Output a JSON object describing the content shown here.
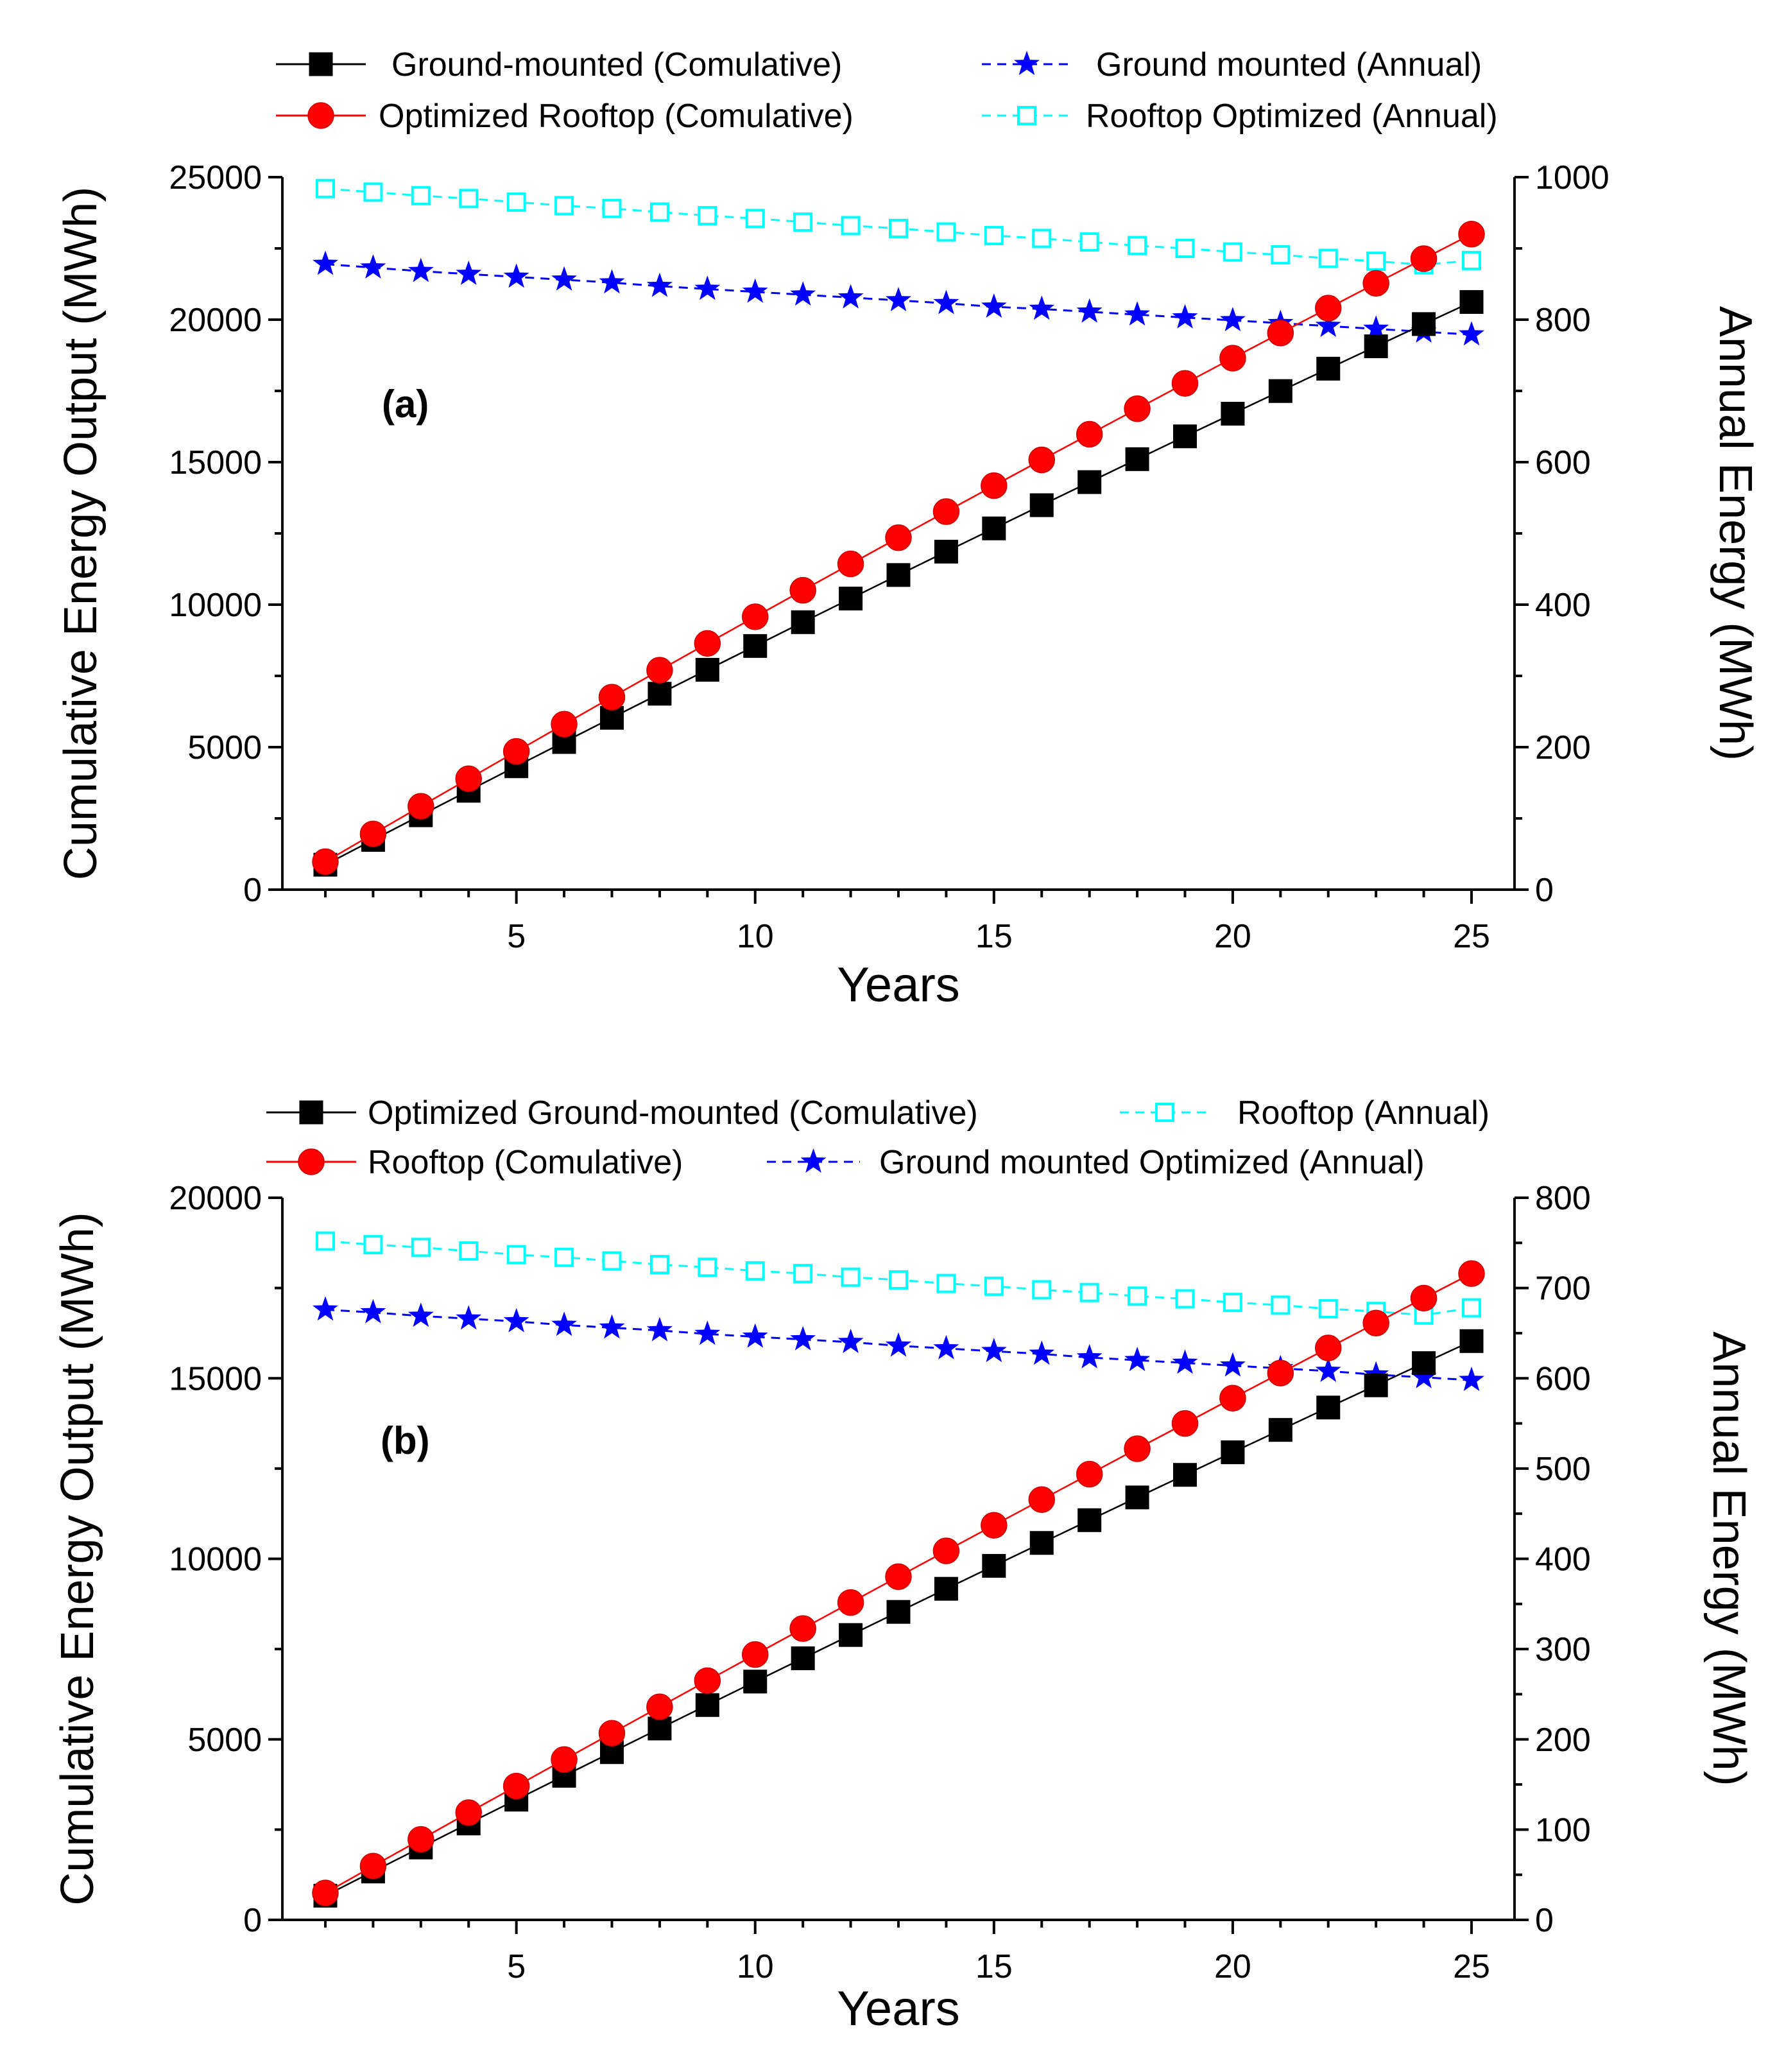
{
  "chart_data": [
    {
      "type": "line",
      "panel_label": "(a)",
      "xlabel": "Years",
      "ylabel_left": "Cumulative Energy Output (MWh)",
      "ylabel_right": "Annual Energy (MWh)",
      "xlim": [
        0.1,
        25.9
      ],
      "xticks": [
        "5",
        "10",
        "15",
        "20",
        "25"
      ],
      "ylim_left": [
        0,
        25000
      ],
      "yticks_left": [
        "0",
        "5000",
        "10000",
        "15000",
        "20000",
        "25000"
      ],
      "ylim_right": [
        0,
        1000
      ],
      "yticks_right": [
        "0",
        "200",
        "400",
        "600",
        "800",
        "1000"
      ],
      "legend_position": "top",
      "x": [
        1,
        2,
        3,
        4,
        5,
        6,
        7,
        8,
        9,
        10,
        11,
        12,
        13,
        14,
        15,
        16,
        17,
        18,
        19,
        20,
        21,
        22,
        23,
        24,
        25
      ],
      "series": [
        {
          "name": "Ground-mounted (Comulative)",
          "axis": "left",
          "marker": "square",
          "color": "#000000",
          "dashed": false,
          "values": [
            875,
            1745,
            2610,
            3470,
            4330,
            5180,
            6030,
            6875,
            7715,
            8550,
            9385,
            10215,
            11040,
            11860,
            12675,
            13490,
            14300,
            15105,
            15905,
            16700,
            17495,
            18280,
            19065,
            19845,
            20620
          ]
        },
        {
          "name": "Optimized Rooftop (Comulative)",
          "axis": "left",
          "marker": "circle",
          "color": "#ff0000",
          "dashed": false,
          "values": [
            980,
            1955,
            2925,
            3890,
            4850,
            5805,
            6755,
            7700,
            8640,
            9575,
            10505,
            11430,
            12350,
            13265,
            14175,
            15080,
            15980,
            16875,
            17765,
            18650,
            19530,
            20405,
            21275,
            22140,
            23000
          ]
        },
        {
          "name": "Ground mounted (Annual)",
          "axis": "right",
          "marker": "star",
          "color": "#0000ff",
          "dashed": true,
          "values": [
            878,
            873,
            868,
            864,
            860,
            856,
            852,
            847,
            843,
            839,
            835,
            831,
            827,
            823,
            818,
            815,
            811,
            807,
            803,
            799,
            795,
            791,
            787,
            783,
            779
          ]
        },
        {
          "name": "Rooftop Optimized (Annual)",
          "axis": "right",
          "marker": "open-square",
          "color": "#00ffff",
          "dashed": true,
          "values": [
            984,
            979,
            974,
            970,
            965,
            960,
            956,
            951,
            946,
            942,
            937,
            932,
            928,
            923,
            918,
            914,
            909,
            904,
            900,
            895,
            891,
            886,
            882,
            877,
            883
          ]
        }
      ]
    },
    {
      "type": "line",
      "panel_label": "(b)",
      "xlabel": "Years",
      "ylabel_left": "Cumulative Energy Output (MWh)",
      "ylabel_right": "Annual Energy (MWh)",
      "xlim": [
        0.1,
        25.9
      ],
      "xticks": [
        "5",
        "10",
        "15",
        "20",
        "25"
      ],
      "ylim_left": [
        0,
        20000
      ],
      "yticks_left": [
        "0",
        "5000",
        "10000",
        "15000",
        "20000"
      ],
      "ylim_right": [
        0,
        800
      ],
      "yticks_right": [
        "0",
        "100",
        "200",
        "300",
        "400",
        "500",
        "600",
        "700",
        "800"
      ],
      "legend_position": "top",
      "x": [
        1,
        2,
        3,
        4,
        5,
        6,
        7,
        8,
        9,
        10,
        11,
        12,
        13,
        14,
        15,
        16,
        17,
        18,
        19,
        20,
        21,
        22,
        23,
        24,
        25
      ],
      "series": [
        {
          "name": "Optimized Ground-mounted (Comulative)",
          "axis": "left",
          "marker": "square",
          "color": "#000000",
          "dashed": false,
          "values": [
            670,
            1340,
            2005,
            2670,
            3330,
            3990,
            4645,
            5300,
            5950,
            6600,
            7245,
            7890,
            8530,
            9170,
            9805,
            10440,
            11070,
            11700,
            12325,
            12950,
            13570,
            14190,
            14805,
            15420,
            16030
          ]
        },
        {
          "name": "Rooftop (Comulative)",
          "axis": "left",
          "marker": "circle",
          "color": "#ff0000",
          "dashed": false,
          "values": [
            745,
            1490,
            2230,
            2970,
            3705,
            4440,
            5170,
            5900,
            6625,
            7350,
            8070,
            8790,
            9505,
            10220,
            10930,
            11640,
            12345,
            13050,
            13750,
            14450,
            15145,
            15840,
            16530,
            17220,
            17900
          ]
        },
        {
          "name": "Rooftop (Annual)",
          "axis": "right",
          "marker": "open-square",
          "color": "#00ffff",
          "dashed": true,
          "values": [
            752,
            748,
            745,
            741,
            737,
            734,
            730,
            726,
            723,
            719,
            716,
            712,
            709,
            705,
            702,
            698,
            695,
            691,
            688,
            684,
            681,
            677,
            674,
            670,
            678
          ]
        },
        {
          "name": "Ground mounted Optimized (Annual)",
          "axis": "right",
          "marker": "star",
          "color": "#0000ff",
          "dashed": true,
          "values": [
            676,
            673,
            669,
            666,
            663,
            659,
            656,
            653,
            649,
            646,
            643,
            640,
            636,
            633,
            630,
            627,
            623,
            620,
            617,
            614,
            611,
            608,
            604,
            601,
            598
          ]
        }
      ]
    }
  ]
}
